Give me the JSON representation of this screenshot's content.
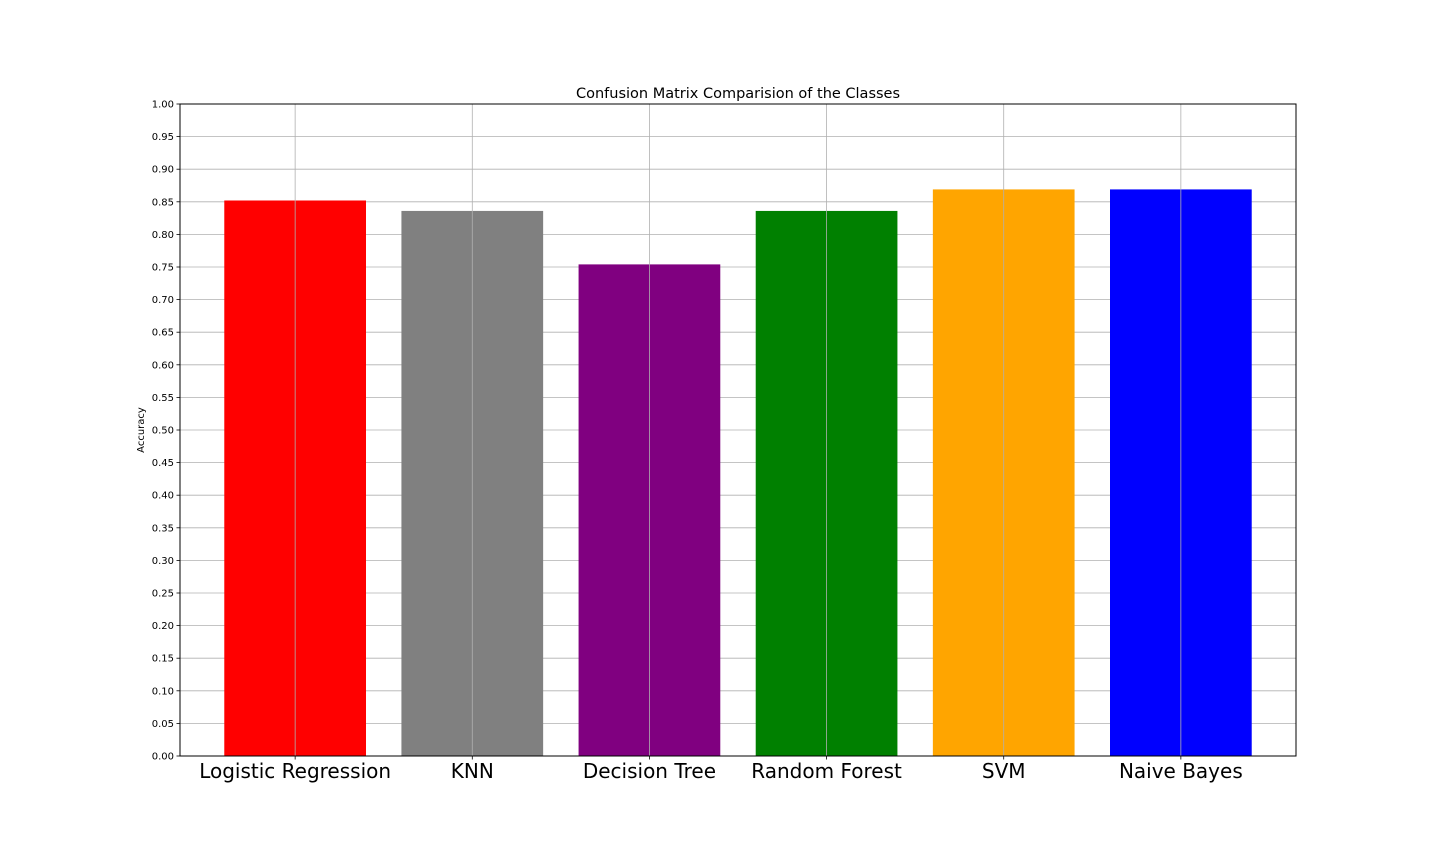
{
  "chart_data": {
    "type": "bar",
    "title": "Confusion Matrix Comparision of the Classes",
    "xlabel": "",
    "ylabel": "Accuracy",
    "categories": [
      "Logistic Regression",
      "KNN",
      "Decision Tree",
      "Random Forest",
      "SVM",
      "Naive Bayes"
    ],
    "values": [
      0.852,
      0.836,
      0.754,
      0.836,
      0.869,
      0.869
    ],
    "colors": [
      "#ff0000",
      "#808080",
      "#800080",
      "#008000",
      "#ffa500",
      "#0000ff"
    ],
    "ylim": [
      0.0,
      1.0
    ],
    "yticks": [
      "0.00",
      "0.05",
      "0.10",
      "0.15",
      "0.20",
      "0.25",
      "0.30",
      "0.35",
      "0.40",
      "0.45",
      "0.50",
      "0.55",
      "0.60",
      "0.65",
      "0.70",
      "0.75",
      "0.80",
      "0.85",
      "0.90",
      "0.95",
      "1.00"
    ],
    "grid": true,
    "grid_color": "#b0b0b0"
  }
}
